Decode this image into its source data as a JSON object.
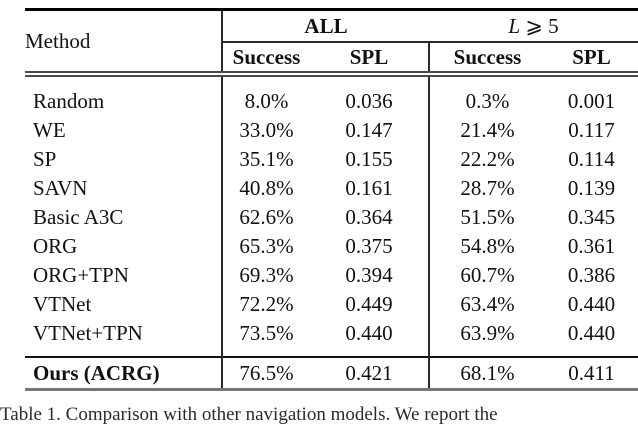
{
  "table": {
    "method_header": "Method",
    "groups": [
      {
        "label": "ALL"
      },
      {
        "var": "L",
        "rest": " ⩾ 5"
      }
    ],
    "sub_headers": [
      "Success",
      "SPL",
      "Success",
      "SPL"
    ],
    "rows": [
      {
        "method": "Random",
        "cells": [
          {
            "text": "8.0%",
            "bold": false
          },
          {
            "text": "0.036",
            "bold": false
          },
          {
            "text": "0.3%",
            "bold": false
          },
          {
            "text": "0.001",
            "bold": false
          }
        ]
      },
      {
        "method": "WE",
        "cells": [
          {
            "text": "33.0%",
            "bold": false
          },
          {
            "text": "0.147",
            "bold": false
          },
          {
            "text": "21.4%",
            "bold": false
          },
          {
            "text": "0.117",
            "bold": false
          }
        ]
      },
      {
        "method": "SP",
        "cells": [
          {
            "text": "35.1%",
            "bold": false
          },
          {
            "text": "0.155",
            "bold": false
          },
          {
            "text": "22.2%",
            "bold": false
          },
          {
            "text": "0.114",
            "bold": false
          }
        ]
      },
      {
        "method": "SAVN",
        "cells": [
          {
            "text": "40.8%",
            "bold": false
          },
          {
            "text": "0.161",
            "bold": false
          },
          {
            "text": "28.7%",
            "bold": false
          },
          {
            "text": "0.139",
            "bold": false
          }
        ]
      },
      {
        "method": "Basic A3C",
        "cells": [
          {
            "text": "62.6%",
            "bold": false
          },
          {
            "text": "0.364",
            "bold": false
          },
          {
            "text": "51.5%",
            "bold": false
          },
          {
            "text": "0.345",
            "bold": false
          }
        ]
      },
      {
        "method": "ORG",
        "cells": [
          {
            "text": "65.3%",
            "bold": false
          },
          {
            "text": "0.375",
            "bold": false
          },
          {
            "text": "54.8%",
            "bold": false
          },
          {
            "text": "0.361",
            "bold": false
          }
        ]
      },
      {
        "method": "ORG+TPN",
        "cells": [
          {
            "text": "69.3%",
            "bold": false
          },
          {
            "text": "0.394",
            "bold": false
          },
          {
            "text": "60.7%",
            "bold": false
          },
          {
            "text": "0.386",
            "bold": false
          }
        ]
      },
      {
        "method": "VTNet",
        "cells": [
          {
            "text": "72.2%",
            "bold": false
          },
          {
            "text": "0.449",
            "bold": true
          },
          {
            "text": "63.4%",
            "bold": false
          },
          {
            "text": "0.440",
            "bold": true
          }
        ]
      },
      {
        "method": "VTNet+TPN",
        "cells": [
          {
            "text": "73.5%",
            "bold": false
          },
          {
            "text": "0.440",
            "bold": false
          },
          {
            "text": "63.9%",
            "bold": false
          },
          {
            "text": "0.440",
            "bold": true
          }
        ]
      }
    ],
    "final_row": {
      "method": "Ours (ACRG)",
      "cells": [
        {
          "text": "76.5%",
          "bold": true
        },
        {
          "text": "0.421",
          "bold": false
        },
        {
          "text": "68.1%",
          "bold": true
        },
        {
          "text": "0.411",
          "bold": false
        }
      ]
    }
  },
  "caption": {
    "text": "Table 1. Comparison with other navigation models. We report the"
  }
}
